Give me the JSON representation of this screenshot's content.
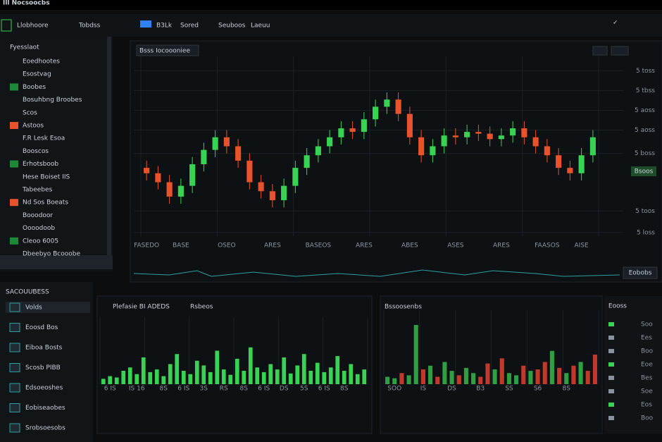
{
  "window": {
    "title": "Ill Nocsoocbs"
  },
  "toolbar": {
    "tabs": [
      "Llobhoore",
      "Tobdss",
      "B3Lk",
      "Sored",
      "Seuboos",
      "Laeuu"
    ]
  },
  "sidebar": {
    "title": "Fyesslaot",
    "items": [
      "Eoedhootes",
      "Esostvag",
      "Boobes",
      "Bosuhbng Broobes",
      "Scos",
      "Astoos",
      "F.R Lesk Esoa",
      "Booscos",
      "Erhotsboob",
      "Hese Boiset IIS",
      "Tabeebes",
      "Nd Sos Boeats",
      "Booodoor",
      "Oooodoob",
      "Cleoo 6005",
      "Dbeebyo Bcooobe"
    ]
  },
  "main_panel": {
    "button": "Eobobs",
    "price_tag": "Bsoos"
  },
  "bottom_left": {
    "title": "SACOUUBESS",
    "items": [
      "Volds",
      "Eoosd Bos",
      "Eiboa Bosts",
      "Scosb PIBB",
      "Edsoeoshes",
      "Eobiseaobes",
      "Srobsoesobs"
    ]
  },
  "bottom_right": {
    "title": "Eooss",
    "labels": [
      "Soo",
      "Ees",
      "Boo",
      "Eoe",
      "Bes",
      "Soe",
      "Eos",
      "Boo"
    ]
  },
  "chart_data": [
    {
      "type": "candlestick",
      "title": "Bsss Iocoooniee",
      "categories": [
        "FASEDO",
        null,
        null,
        "BASE",
        null,
        null,
        null,
        "OSEO",
        null,
        null,
        null,
        "ARES",
        null,
        null,
        null,
        "BASEOS",
        null,
        null,
        null,
        "ARES",
        null,
        null,
        null,
        "ABES",
        null,
        null,
        null,
        "ASES",
        null,
        null,
        null,
        "ARES",
        null,
        null,
        null,
        "FAASOS",
        null,
        null,
        "AISE",
        null
      ],
      "open": [
        38,
        35,
        30,
        22,
        28,
        40,
        48,
        55,
        50,
        42,
        30,
        25,
        20,
        28,
        38,
        45,
        50,
        55,
        60,
        58,
        65,
        72,
        76,
        68,
        55,
        45,
        50,
        56,
        55,
        58,
        57,
        54,
        56,
        60,
        55,
        50,
        45,
        38,
        35,
        45
      ],
      "high": [
        42,
        39,
        34,
        32,
        44,
        52,
        59,
        59,
        54,
        46,
        34,
        29,
        32,
        42,
        49,
        54,
        59,
        64,
        64,
        69,
        76,
        80,
        80,
        72,
        59,
        54,
        60,
        60,
        62,
        62,
        61,
        60,
        64,
        64,
        59,
        54,
        49,
        42,
        49,
        59
      ],
      "low": [
        31,
        26,
        18,
        18,
        24,
        36,
        44,
        46,
        38,
        26,
        21,
        16,
        16,
        24,
        34,
        41,
        46,
        51,
        54,
        54,
        61,
        68,
        64,
        51,
        41,
        41,
        46,
        51,
        51,
        53,
        50,
        50,
        52,
        51,
        46,
        41,
        34,
        31,
        31,
        41
      ],
      "close": [
        35,
        30,
        22,
        28,
        40,
        48,
        55,
        50,
        42,
        30,
        25,
        20,
        28,
        38,
        45,
        50,
        55,
        60,
        58,
        65,
        72,
        76,
        68,
        55,
        45,
        50,
        56,
        55,
        58,
        57,
        54,
        56,
        60,
        55,
        50,
        45,
        38,
        35,
        45,
        55
      ],
      "up_color": "#39d353",
      "down_color": "#e8532b",
      "ylim": [
        0,
        100
      ],
      "yticks": [
        {
          "value": 92,
          "label": "5 toss"
        },
        {
          "value": 81,
          "label": "5 tbss"
        },
        {
          "value": 70,
          "label": "5 aoss"
        },
        {
          "value": 59,
          "label": "5 aoss"
        },
        {
          "value": 46,
          "label": "5 boss"
        },
        {
          "value": 14,
          "label": "5 toos"
        },
        {
          "value": 2,
          "label": "5 loss"
        }
      ],
      "grid": true
    },
    {
      "type": "bar",
      "title": "Plefasie BI ADEDS",
      "subtitle": "Rsbeos",
      "color": "#39d353",
      "categories": [
        null,
        "6 IS",
        null,
        null,
        null,
        "IS 16",
        null,
        null,
        null,
        "8S",
        null,
        null,
        "6 IS",
        null,
        null,
        "3S",
        null,
        null,
        "RS",
        null,
        null,
        "8S",
        null,
        null,
        "6 IS",
        null,
        null,
        "DS",
        null,
        null,
        "5S",
        null,
        null,
        "6 IS",
        null,
        null,
        "8S",
        null,
        null,
        null
      ],
      "values": [
        8,
        12,
        10,
        20,
        25,
        15,
        40,
        18,
        22,
        12,
        30,
        45,
        20,
        15,
        35,
        28,
        18,
        50,
        22,
        14,
        38,
        20,
        55,
        25,
        18,
        30,
        22,
        40,
        16,
        28,
        45,
        20,
        32,
        18,
        25,
        42,
        20,
        30,
        15,
        22
      ],
      "ylim": [
        0,
        100
      ],
      "grid": true
    },
    {
      "type": "bar",
      "title": "Bssoosenbs",
      "categories": [
        null,
        "SOO",
        null,
        null,
        null,
        "IS",
        null,
        null,
        null,
        "DS",
        null,
        null,
        null,
        "B3",
        null,
        null,
        null,
        "SS",
        null,
        null,
        null,
        "S6",
        null,
        null,
        null,
        "8S",
        null,
        null,
        null,
        null
      ],
      "values": [
        10,
        8,
        15,
        12,
        80,
        20,
        25,
        10,
        30,
        18,
        12,
        22,
        15,
        10,
        28,
        20,
        35,
        15,
        12,
        25,
        18,
        20,
        30,
        45,
        22,
        15,
        25,
        30,
        18,
        40
      ],
      "colors": [
        "#2ea043",
        "#2ea043",
        "#c0392b",
        "#2ea043",
        "#2ea043",
        "#c0392b",
        "#2ea043",
        "#c0392b",
        "#2ea043",
        "#2ea043",
        "#c0392b",
        "#2ea043",
        "#2ea043",
        "#c0392b",
        "#c0392b",
        "#2ea043",
        "#c0392b",
        "#2ea043",
        "#2ea043",
        "#c0392b",
        "#2ea043",
        "#c0392b",
        "#c0392b",
        "#2ea043",
        "#c0392b",
        "#2ea043",
        "#c0392b",
        "#2ea043",
        "#c0392b",
        "#c0392b"
      ],
      "ylim": [
        0,
        100
      ],
      "grid": true
    }
  ]
}
